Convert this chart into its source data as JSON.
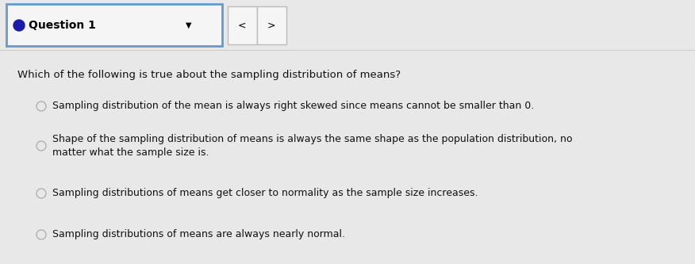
{
  "bg_color": "#e8e8e8",
  "header_box_color": "#f5f5f5",
  "header_border_color": "#6699cc",
  "header_text": "Question 1",
  "header_dot_color": "#1a1aaa",
  "nav_box_color": "#f5f5f5",
  "nav_border_color": "#bbbbbb",
  "question_text": "Which of the following is true about the sampling distribution of means?",
  "options": [
    "Sampling distribution of the mean is always right skewed since means cannot be smaller than 0.",
    "Shape of the sampling distribution of means is always the same shape as the population distribution, no\nmatter what the sample size is.",
    "Sampling distributions of means get closer to normality as the sample size increases.",
    "Sampling distributions of means are always nearly normal."
  ],
  "question_fontsize": 9.5,
  "option_fontsize": 9.0,
  "header_fontsize": 10.0,
  "sep_line_color": "#cccccc",
  "radio_color": "#aaaaaa",
  "text_color": "#111111"
}
